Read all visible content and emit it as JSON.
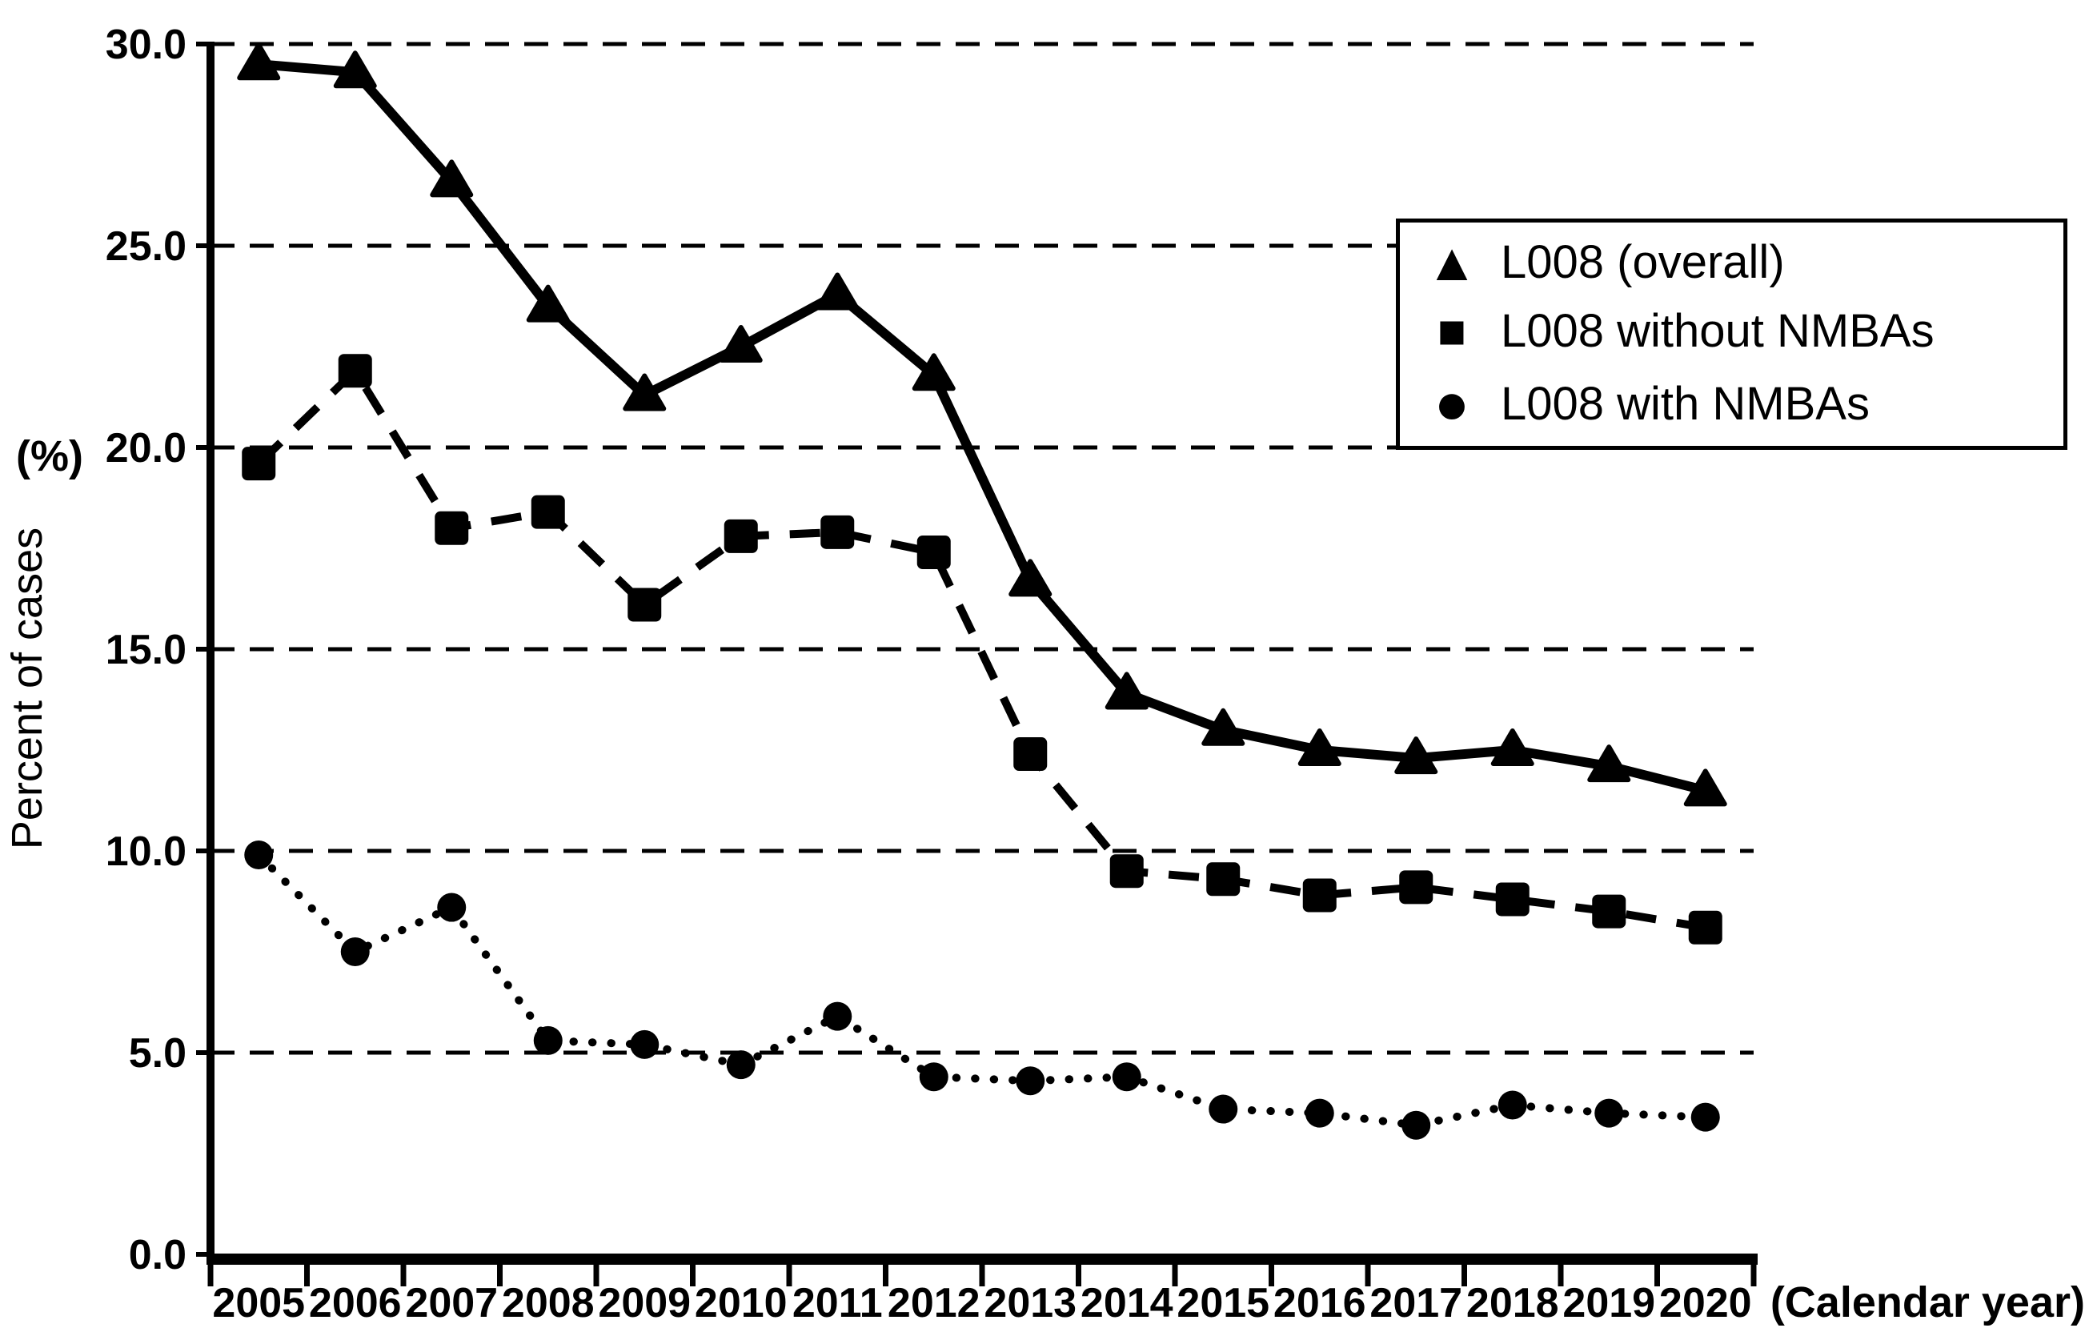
{
  "chart_data": {
    "type": "line",
    "title": "",
    "categories": [
      "2005",
      "2006",
      "2007",
      "2008",
      "2009",
      "2010",
      "2011",
      "2012",
      "2013",
      "2014",
      "2015",
      "2016",
      "2017",
      "2018",
      "2019",
      "2020"
    ],
    "series": [
      {
        "name": "L008 (overall)",
        "marker": "triangle",
        "line_style": "solid",
        "values": [
          29.5,
          29.3,
          26.6,
          23.5,
          21.3,
          22.5,
          23.8,
          21.8,
          16.7,
          13.9,
          13.0,
          12.5,
          12.3,
          12.5,
          12.1,
          11.5
        ]
      },
      {
        "name": "L008 without NMBAs",
        "marker": "square",
        "line_style": "dashed",
        "values": [
          19.6,
          21.9,
          18.0,
          18.4,
          16.1,
          17.8,
          17.9,
          17.4,
          12.4,
          9.5,
          9.3,
          8.9,
          9.1,
          8.8,
          8.5,
          8.1
        ]
      },
      {
        "name": "L008 with NMBAs",
        "marker": "circle",
        "line_style": "dotted",
        "values": [
          9.9,
          7.5,
          8.6,
          5.3,
          5.2,
          4.7,
          5.9,
          4.4,
          4.3,
          4.4,
          3.6,
          3.5,
          3.2,
          3.7,
          3.5,
          3.4
        ]
      }
    ],
    "ylabel": "Percent of cases",
    "y_unit_label": "(%)",
    "xlabel": "(Calendar year)",
    "ylim": [
      0,
      30
    ],
    "ytick_step": 5,
    "ytick_labels": [
      "0.0",
      "5.0",
      "10.0",
      "15.0",
      "20.0",
      "25.0",
      "30.0"
    ],
    "grid": "horizontal-dashed",
    "legend_position": "upper-right",
    "color": "#000000",
    "background": "#ffffff"
  },
  "legend": {
    "triangle_glyph": "▲",
    "square_glyph": "■",
    "circle_glyph": "●"
  }
}
